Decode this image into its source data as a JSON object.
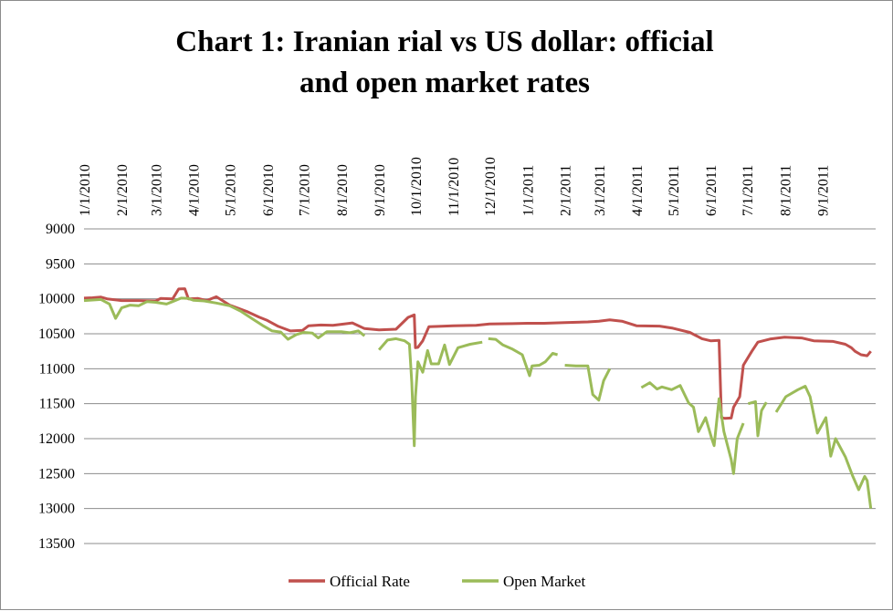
{
  "chart_data": {
    "type": "line",
    "title": "Chart 1: Iranian rial vs US dollar: official and open market rates",
    "title_lines": [
      "Chart 1: Iranian rial vs US dollar: official",
      "and open market rates"
    ],
    "xlabel": "",
    "ylabel": "",
    "y_axis_reversed": true,
    "ylim": [
      9000,
      13500
    ],
    "y_ticks": [
      9000,
      9500,
      10000,
      10500,
      11000,
      11500,
      12000,
      12500,
      13000,
      13500
    ],
    "x_range": [
      "2010-01-01",
      "2011-10-15"
    ],
    "x_tick_labels": [
      "1/1/2010",
      "2/1/2010",
      "3/1/2010",
      "4/1/2010",
      "5/1/2010",
      "6/1/2010",
      "7/1/2010",
      "8/1/2010",
      "9/1/2010",
      "10/1/2010",
      "11/1/2010",
      "12/1/2010",
      "1/1/2011",
      "2/1/2011",
      "3/1/2011",
      "4/1/2011",
      "5/1/2011",
      "6/1/2011",
      "7/1/2011",
      "8/1/2011",
      "9/1/2011"
    ],
    "x_tick_dates": [
      "2010-01-01",
      "2010-02-01",
      "2010-03-01",
      "2010-04-01",
      "2010-05-01",
      "2010-06-01",
      "2010-07-01",
      "2010-08-01",
      "2010-09-01",
      "2010-10-01",
      "2010-11-01",
      "2010-12-01",
      "2011-01-01",
      "2011-02-01",
      "2011-03-01",
      "2011-04-01",
      "2011-05-01",
      "2011-06-01",
      "2011-07-01",
      "2011-08-01",
      "2011-09-01"
    ],
    "grid": "horizontal",
    "legend_position": "bottom",
    "series": [
      {
        "name": "Official Rate",
        "color": "#c0504d",
        "points": [
          [
            "2010-01-01",
            9990
          ],
          [
            "2010-01-08",
            9985
          ],
          [
            "2010-01-15",
            9975
          ],
          [
            "2010-01-20",
            10000
          ],
          [
            "2010-02-01",
            10025
          ],
          [
            "2010-02-15",
            10025
          ],
          [
            "2010-03-01",
            10030
          ],
          [
            "2010-03-05",
            9995
          ],
          [
            "2010-03-15",
            10000
          ],
          [
            "2010-03-20",
            9860
          ],
          [
            "2010-03-25",
            9855
          ],
          [
            "2010-03-28",
            10000
          ],
          [
            "2010-04-05",
            9995
          ],
          [
            "2010-04-12",
            10025
          ],
          [
            "2010-04-20",
            9970
          ],
          [
            "2010-05-01",
            10090
          ],
          [
            "2010-05-15",
            10180
          ],
          [
            "2010-05-25",
            10260
          ],
          [
            "2010-06-01",
            10310
          ],
          [
            "2010-06-10",
            10395
          ],
          [
            "2010-06-20",
            10460
          ],
          [
            "2010-06-30",
            10450
          ],
          [
            "2010-07-05",
            10385
          ],
          [
            "2010-07-15",
            10375
          ],
          [
            "2010-07-25",
            10380
          ],
          [
            "2010-08-01",
            10365
          ],
          [
            "2010-08-10",
            10345
          ],
          [
            "2010-08-20",
            10425
          ],
          [
            "2010-09-01",
            10445
          ],
          [
            "2010-09-15",
            10435
          ],
          [
            "2010-09-25",
            10265
          ],
          [
            "2010-09-30",
            10230
          ],
          [
            "2010-10-01",
            10700
          ],
          [
            "2010-10-03",
            10695
          ],
          [
            "2010-10-07",
            10600
          ],
          [
            "2010-10-12",
            10400
          ],
          [
            "2010-10-20",
            10395
          ],
          [
            "2010-11-01",
            10385
          ],
          [
            "2010-11-20",
            10380
          ],
          [
            "2010-12-01",
            10360
          ],
          [
            "2010-12-20",
            10355
          ],
          [
            "2011-01-01",
            10350
          ],
          [
            "2011-01-15",
            10350
          ],
          [
            "2011-02-01",
            10340
          ],
          [
            "2011-02-20",
            10330
          ],
          [
            "2011-03-01",
            10320
          ],
          [
            "2011-03-10",
            10300
          ],
          [
            "2011-03-20",
            10320
          ],
          [
            "2011-04-01",
            10385
          ],
          [
            "2011-04-20",
            10390
          ],
          [
            "2011-05-01",
            10420
          ],
          [
            "2011-05-15",
            10480
          ],
          [
            "2011-05-25",
            10570
          ],
          [
            "2011-06-01",
            10600
          ],
          [
            "2011-06-08",
            10595
          ],
          [
            "2011-06-10",
            11700
          ],
          [
            "2011-06-13",
            11710
          ],
          [
            "2011-06-18",
            11705
          ],
          [
            "2011-06-20",
            11550
          ],
          [
            "2011-06-25",
            11400
          ],
          [
            "2011-06-28",
            10950
          ],
          [
            "2011-07-05",
            10750
          ],
          [
            "2011-07-10",
            10620
          ],
          [
            "2011-07-20",
            10575
          ],
          [
            "2011-08-01",
            10550
          ],
          [
            "2011-08-15",
            10560
          ],
          [
            "2011-08-25",
            10600
          ],
          [
            "2011-09-10",
            10610
          ],
          [
            "2011-09-20",
            10650
          ],
          [
            "2011-09-25",
            10700
          ],
          [
            "2011-09-28",
            10750
          ],
          [
            "2011-10-03",
            10800
          ],
          [
            "2011-10-08",
            10815
          ],
          [
            "2011-10-11",
            10750
          ]
        ]
      },
      {
        "name": "Open Market",
        "color": "#9bbb59",
        "points": [
          [
            "2010-01-01",
            10025
          ],
          [
            "2010-01-15",
            10010
          ],
          [
            "2010-01-22",
            10075
          ],
          [
            "2010-01-27",
            10280
          ],
          [
            "2010-02-01",
            10130
          ],
          [
            "2010-02-08",
            10090
          ],
          [
            "2010-02-15",
            10100
          ],
          [
            "2010-02-22",
            10040
          ],
          [
            "2010-03-01",
            10050
          ],
          [
            "2010-03-10",
            10075
          ],
          [
            "2010-03-15",
            10040
          ],
          [
            "2010-03-22",
            9990
          ],
          [
            "2010-03-28",
            9995
          ],
          [
            "2010-04-01",
            10020
          ],
          [
            "2010-04-10",
            10030
          ],
          [
            "2010-04-20",
            10060
          ],
          [
            "2010-05-01",
            10100
          ],
          [
            "2010-05-10",
            10175
          ],
          [
            "2010-05-20",
            10290
          ],
          [
            "2010-05-28",
            10380
          ],
          [
            "2010-06-05",
            10460
          ],
          [
            "2010-06-12",
            10475
          ],
          [
            "2010-06-18",
            10580
          ],
          [
            "2010-06-25",
            10510
          ],
          [
            "2010-07-01",
            10480
          ],
          [
            "2010-07-08",
            10490
          ],
          [
            "2010-07-13",
            10560
          ],
          [
            "2010-07-20",
            10470
          ],
          [
            "2010-08-01",
            10470
          ],
          [
            "2010-08-08",
            10485
          ],
          [
            "2010-08-15",
            10460
          ],
          [
            "2010-08-20",
            10530
          ],
          null,
          [
            "2010-09-01",
            10730
          ],
          [
            "2010-09-08",
            10590
          ],
          [
            "2010-09-15",
            10570
          ],
          [
            "2010-09-22",
            10600
          ],
          [
            "2010-09-26",
            10650
          ],
          [
            "2010-09-28",
            11200
          ],
          [
            "2010-09-30",
            12100
          ],
          [
            "2010-10-01",
            11400
          ],
          [
            "2010-10-03",
            10900
          ],
          [
            "2010-10-07",
            11050
          ],
          [
            "2010-10-11",
            10740
          ],
          [
            "2010-10-14",
            10930
          ],
          [
            "2010-10-20",
            10930
          ],
          [
            "2010-10-25",
            10660
          ],
          [
            "2010-10-29",
            10940
          ],
          [
            "2010-11-05",
            10700
          ],
          [
            "2010-11-15",
            10650
          ],
          [
            "2010-11-25",
            10620
          ],
          null,
          [
            "2010-11-30",
            10570
          ],
          [
            "2010-12-06",
            10580
          ],
          [
            "2010-12-12",
            10660
          ],
          [
            "2010-12-20",
            10720
          ],
          [
            "2010-12-28",
            10800
          ],
          [
            "2011-01-03",
            11100
          ],
          [
            "2011-01-05",
            10960
          ],
          [
            "2011-01-11",
            10950
          ],
          [
            "2011-01-16",
            10900
          ],
          [
            "2011-01-22",
            10780
          ],
          [
            "2011-01-26",
            10800
          ],
          null,
          [
            "2011-02-01",
            10950
          ],
          [
            "2011-02-10",
            10960
          ],
          [
            "2011-02-20",
            10960
          ],
          [
            "2011-02-24",
            11370
          ],
          [
            "2011-03-01",
            11450
          ],
          [
            "2011-03-05",
            11170
          ],
          [
            "2011-03-10",
            11000
          ],
          null,
          [
            "2011-04-05",
            11270
          ],
          [
            "2011-04-12",
            11200
          ],
          [
            "2011-04-18",
            11290
          ],
          [
            "2011-04-22",
            11260
          ],
          [
            "2011-04-30",
            11300
          ],
          [
            "2011-05-07",
            11240
          ],
          [
            "2011-05-14",
            11490
          ],
          [
            "2011-05-18",
            11550
          ],
          [
            "2011-05-22",
            11900
          ],
          [
            "2011-05-28",
            11700
          ],
          [
            "2011-06-02",
            12000
          ],
          [
            "2011-06-04",
            12100
          ],
          [
            "2011-06-08",
            11430
          ],
          [
            "2011-06-12",
            11900
          ],
          [
            "2011-06-18",
            12300
          ],
          [
            "2011-06-20",
            12500
          ],
          [
            "2011-06-23",
            12000
          ],
          [
            "2011-06-28",
            11780
          ],
          null,
          [
            "2011-07-02",
            11500
          ],
          [
            "2011-07-08",
            11470
          ],
          [
            "2011-07-10",
            11960
          ],
          [
            "2011-07-13",
            11600
          ],
          [
            "2011-07-17",
            11480
          ],
          null,
          [
            "2011-07-25",
            11620
          ],
          [
            "2011-08-02",
            11400
          ],
          [
            "2011-08-12",
            11300
          ],
          [
            "2011-08-18",
            11250
          ],
          [
            "2011-08-22",
            11400
          ],
          [
            "2011-08-28",
            11920
          ],
          [
            "2011-09-04",
            11700
          ],
          [
            "2011-09-08",
            12250
          ],
          [
            "2011-09-12",
            12000
          ],
          [
            "2011-09-20",
            12260
          ],
          [
            "2011-09-26",
            12530
          ],
          [
            "2011-10-01",
            12730
          ],
          [
            "2011-10-06",
            12540
          ],
          [
            "2011-10-08",
            12600
          ],
          [
            "2011-10-11",
            13000
          ]
        ]
      }
    ]
  }
}
